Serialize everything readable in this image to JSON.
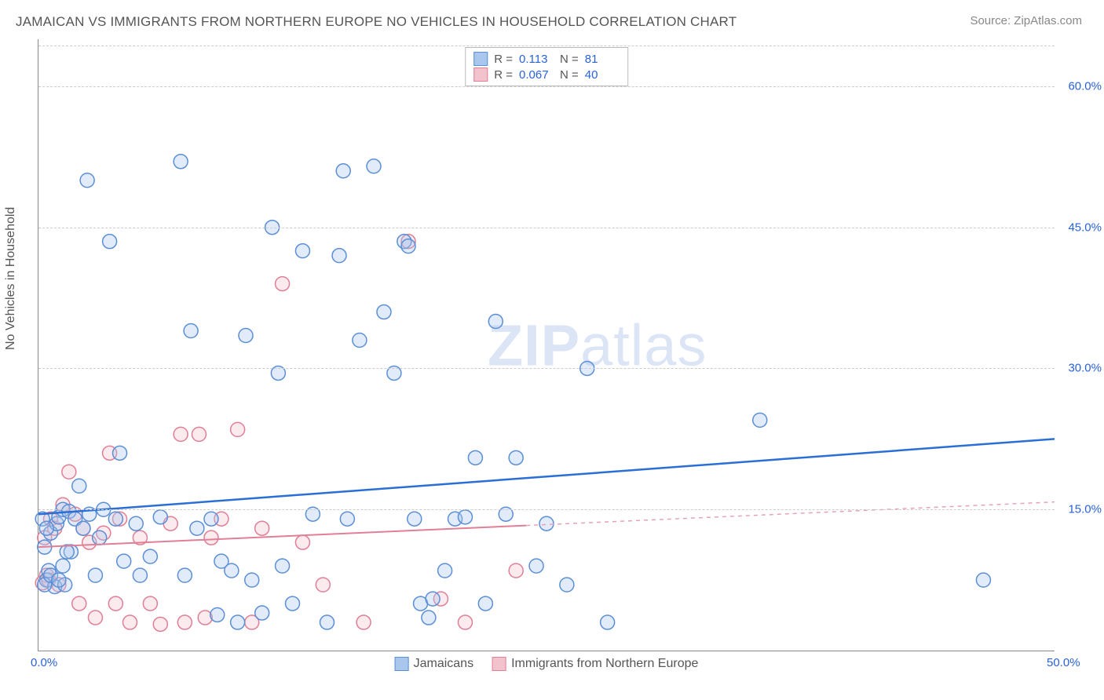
{
  "title": "JAMAICAN VS IMMIGRANTS FROM NORTHERN EUROPE NO VEHICLES IN HOUSEHOLD CORRELATION CHART",
  "source": "Source: ZipAtlas.com",
  "y_axis_label": "No Vehicles in Household",
  "watermark": "ZIPatlas",
  "chart": {
    "type": "scatter",
    "xlim": [
      0,
      50
    ],
    "ylim": [
      0,
      65
    ],
    "x_ticks": [
      {
        "v": 0,
        "l": "0.0%"
      },
      {
        "v": 50,
        "l": "50.0%"
      }
    ],
    "y_ticks": [
      {
        "v": 15,
        "l": "15.0%"
      },
      {
        "v": 30,
        "l": "30.0%"
      },
      {
        "v": 45,
        "l": "45.0%"
      },
      {
        "v": 60,
        "l": "60.0%"
      }
    ],
    "grid_color": "#cccccc",
    "axis_color": "#888888",
    "background_color": "#ffffff",
    "marker_radius": 9,
    "series": [
      {
        "key": "jamaicans",
        "label": "Jamaicans",
        "fill": "#a9c6ed",
        "stroke": "#5b8fd6",
        "R": "0.113",
        "N": "81",
        "trend": {
          "x1": 0,
          "y1": 14.5,
          "x2": 50,
          "y2": 22.5,
          "color": "#2a6fd6",
          "width": 2.5,
          "dash": ""
        },
        "points": [
          [
            0.2,
            14.0
          ],
          [
            0.3,
            11.0
          ],
          [
            0.4,
            7.5
          ],
          [
            0.5,
            8.5
          ],
          [
            0.6,
            12.5
          ],
          [
            0.8,
            6.8
          ],
          [
            0.9,
            13.5
          ],
          [
            1.0,
            14.2
          ],
          [
            1.2,
            15.0
          ],
          [
            1.3,
            7.0
          ],
          [
            1.5,
            14.8
          ],
          [
            1.6,
            10.5
          ],
          [
            1.8,
            14.0
          ],
          [
            2.0,
            17.5
          ],
          [
            2.2,
            13.0
          ],
          [
            2.4,
            50.0
          ],
          [
            2.5,
            14.5
          ],
          [
            2.8,
            8.0
          ],
          [
            3.0,
            12.0
          ],
          [
            3.2,
            15.0
          ],
          [
            3.5,
            43.5
          ],
          [
            3.8,
            14.0
          ],
          [
            4.0,
            21.0
          ],
          [
            4.2,
            9.5
          ],
          [
            4.8,
            13.5
          ],
          [
            5.0,
            8.0
          ],
          [
            5.5,
            10.0
          ],
          [
            6.0,
            14.2
          ],
          [
            7.0,
            52.0
          ],
          [
            7.2,
            8.0
          ],
          [
            7.5,
            34.0
          ],
          [
            7.8,
            13.0
          ],
          [
            8.5,
            14.0
          ],
          [
            8.8,
            3.8
          ],
          [
            9.0,
            9.5
          ],
          [
            9.5,
            8.5
          ],
          [
            9.8,
            3.0
          ],
          [
            10.2,
            33.5
          ],
          [
            10.5,
            7.5
          ],
          [
            11.0,
            4.0
          ],
          [
            11.5,
            45.0
          ],
          [
            11.8,
            29.5
          ],
          [
            12.0,
            9.0
          ],
          [
            12.5,
            5.0
          ],
          [
            13.0,
            42.5
          ],
          [
            13.5,
            14.5
          ],
          [
            14.2,
            3.0
          ],
          [
            14.8,
            42.0
          ],
          [
            15.0,
            51.0
          ],
          [
            15.2,
            14.0
          ],
          [
            15.8,
            33.0
          ],
          [
            16.5,
            51.5
          ],
          [
            17.0,
            36.0
          ],
          [
            17.5,
            29.5
          ],
          [
            18.0,
            43.5
          ],
          [
            18.2,
            43.0
          ],
          [
            18.5,
            14.0
          ],
          [
            18.8,
            5.0
          ],
          [
            19.2,
            3.5
          ],
          [
            19.4,
            5.5
          ],
          [
            20.0,
            8.5
          ],
          [
            20.5,
            14.0
          ],
          [
            21.0,
            14.2
          ],
          [
            21.5,
            20.5
          ],
          [
            22.0,
            5.0
          ],
          [
            22.5,
            35.0
          ],
          [
            23.0,
            14.5
          ],
          [
            23.5,
            20.5
          ],
          [
            24.5,
            9.0
          ],
          [
            25.0,
            13.5
          ],
          [
            26.0,
            7.0
          ],
          [
            27.0,
            30.0
          ],
          [
            28.0,
            3.0
          ],
          [
            35.5,
            24.5
          ],
          [
            46.5,
            7.5
          ],
          [
            0.3,
            7.0
          ],
          [
            0.4,
            13.0
          ],
          [
            0.6,
            8.0
          ],
          [
            1.0,
            7.5
          ],
          [
            1.2,
            9.0
          ],
          [
            1.4,
            10.5
          ]
        ]
      },
      {
        "key": "immigrants",
        "label": "Immigrants from Northern Europe",
        "fill": "#f3c3cd",
        "stroke": "#e07f96",
        "R": "0.067",
        "N": "40",
        "trend_solid": {
          "x1": 0,
          "y1": 11.0,
          "x2": 24,
          "y2": 13.3,
          "color": "#e07f96",
          "width": 2,
          "dash": ""
        },
        "trend_dash": {
          "x1": 24,
          "y1": 13.3,
          "x2": 50,
          "y2": 15.8,
          "color": "#e5a4b3",
          "width": 1.5,
          "dash": "5,5"
        },
        "points": [
          [
            0.2,
            7.2
          ],
          [
            0.3,
            12.0
          ],
          [
            0.4,
            8.0
          ],
          [
            0.5,
            7.5
          ],
          [
            0.6,
            14.0
          ],
          [
            0.8,
            13.0
          ],
          [
            1.0,
            7.0
          ],
          [
            1.2,
            15.5
          ],
          [
            1.5,
            19.0
          ],
          [
            1.8,
            14.5
          ],
          [
            2.0,
            5.0
          ],
          [
            2.2,
            13.0
          ],
          [
            2.5,
            11.5
          ],
          [
            2.8,
            3.5
          ],
          [
            3.2,
            12.5
          ],
          [
            3.5,
            21.0
          ],
          [
            3.8,
            5.0
          ],
          [
            4.0,
            14.0
          ],
          [
            4.5,
            3.0
          ],
          [
            5.0,
            12.0
          ],
          [
            5.5,
            5.0
          ],
          [
            6.0,
            2.8
          ],
          [
            6.5,
            13.5
          ],
          [
            7.0,
            23.0
          ],
          [
            7.2,
            3.0
          ],
          [
            7.9,
            23.0
          ],
          [
            8.2,
            3.5
          ],
          [
            8.5,
            12.0
          ],
          [
            9.0,
            14.0
          ],
          [
            9.8,
            23.5
          ],
          [
            10.5,
            3.0
          ],
          [
            11.0,
            13.0
          ],
          [
            12.0,
            39.0
          ],
          [
            13.0,
            11.5
          ],
          [
            14.0,
            7.0
          ],
          [
            16.0,
            3.0
          ],
          [
            18.2,
            43.5
          ],
          [
            19.8,
            5.5
          ],
          [
            21.0,
            3.0
          ],
          [
            23.5,
            8.5
          ]
        ]
      }
    ]
  },
  "bottom_legend": [
    {
      "label": "Jamaicans",
      "fill": "#a9c6ed",
      "stroke": "#5b8fd6"
    },
    {
      "label": "Immigrants from Northern Europe",
      "fill": "#f3c3cd",
      "stroke": "#e07f96"
    }
  ]
}
